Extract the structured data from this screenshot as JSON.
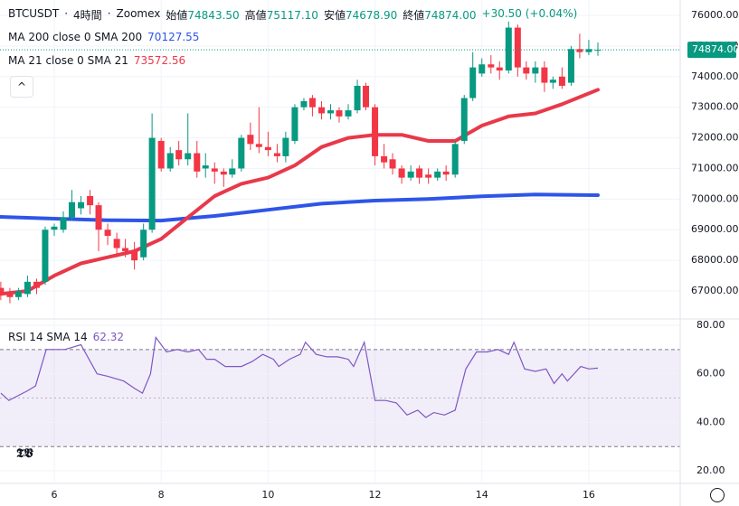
{
  "chart_data": {
    "type": "candlestick",
    "symbol": "BTCUSDT",
    "interval": "4時間",
    "exchange": "Zoomex",
    "ohlc_legend": [
      {
        "label": "始値",
        "value": "74843.50"
      },
      {
        "label": "高値",
        "value": "75117.10"
      },
      {
        "label": "安値",
        "value": "74678.90"
      },
      {
        "label": "終値",
        "value": "74874.00"
      }
    ],
    "change": "+30.50 (+0.04%)",
    "up_color": "#089981",
    "down_color": "#f23645",
    "x": [
      5,
      5.17,
      5.33,
      5.5,
      5.67,
      5.83,
      6,
      6.17,
      6.33,
      6.5,
      6.67,
      6.83,
      7,
      7.17,
      7.33,
      7.5,
      7.67,
      7.83,
      8,
      8.17,
      8.33,
      8.5,
      8.67,
      8.83,
      9,
      9.17,
      9.33,
      9.5,
      9.67,
      9.83,
      10,
      10.17,
      10.33,
      10.5,
      10.67,
      10.83,
      11,
      11.17,
      11.33,
      11.5,
      11.67,
      11.83,
      12,
      12.17,
      12.33,
      12.5,
      12.67,
      12.83,
      13,
      13.17,
      13.33,
      13.5,
      13.67,
      13.83,
      14,
      14.17,
      14.33,
      14.5,
      14.67,
      14.83,
      15,
      15.17,
      15.33,
      15.5,
      15.67,
      15.83,
      16,
      16.17
    ],
    "open": [
      67100,
      66950,
      66800,
      66900,
      67300,
      67300,
      69000,
      69000,
      69400,
      69700,
      70100,
      69800,
      69000,
      68700,
      68400,
      68300,
      68100,
      69000,
      71900,
      71000,
      71600,
      71300,
      71500,
      71000,
      71000,
      70900,
      70800,
      71000,
      72100,
      71800,
      71700,
      71500,
      71400,
      71900,
      73000,
      73300,
      73000,
      72800,
      72900,
      72700,
      72900,
      73700,
      73000,
      71400,
      71300,
      71000,
      70700,
      71000,
      70800,
      70700,
      70900,
      70800,
      71900,
      73300,
      74100,
      74400,
      74300,
      74200,
      75600,
      74300,
      74100,
      74300,
      73800,
      74000,
      73800,
      74900,
      74800,
      74843.5
    ],
    "high": [
      67300,
      67100,
      67100,
      67500,
      67400,
      69100,
      69200,
      69600,
      70300,
      70100,
      70300,
      69900,
      69200,
      68900,
      68700,
      68600,
      69200,
      72800,
      72000,
      71700,
      71900,
      72800,
      71900,
      71500,
      71200,
      71000,
      71300,
      72100,
      72500,
      73000,
      72200,
      71800,
      72200,
      73100,
      73300,
      73400,
      73200,
      73100,
      73000,
      73100,
      73900,
      73800,
      73100,
      71800,
      71500,
      71100,
      71100,
      71100,
      71000,
      71000,
      71100,
      71900,
      73400,
      74800,
      74600,
      74700,
      74500,
      75800,
      75700,
      74500,
      74500,
      74500,
      74000,
      74300,
      75000,
      75400,
      75200,
      75117.1
    ],
    "low": [
      66700,
      66600,
      66700,
      66800,
      66900,
      67200,
      68800,
      68900,
      69300,
      69500,
      69500,
      68300,
      68500,
      68100,
      68100,
      67700,
      68000,
      68900,
      70900,
      70900,
      71100,
      71100,
      70700,
      70700,
      70500,
      70400,
      70700,
      70900,
      71600,
      71500,
      71400,
      71200,
      71200,
      71800,
      72900,
      72700,
      72600,
      72600,
      72500,
      72600,
      72800,
      72900,
      71100,
      71000,
      70800,
      70500,
      70600,
      70500,
      70500,
      70600,
      70600,
      70700,
      71800,
      73200,
      74000,
      74100,
      73900,
      74100,
      74000,
      73900,
      73800,
      73500,
      73600,
      73600,
      73700,
      74600,
      74700,
      74678.9
    ],
    "close": [
      66900,
      66800,
      67000,
      67300,
      67100,
      69000,
      69100,
      69400,
      69900,
      69900,
      69800,
      69000,
      68800,
      68400,
      68300,
      68000,
      69000,
      72000,
      71000,
      71500,
      71300,
      71500,
      70900,
      71100,
      70900,
      70800,
      71000,
      72000,
      71800,
      71700,
      71600,
      71400,
      72000,
      73000,
      73200,
      73000,
      72800,
      72900,
      72700,
      72900,
      73700,
      73000,
      71400,
      71200,
      71000,
      70700,
      70900,
      70700,
      70700,
      70900,
      70800,
      71800,
      73300,
      74300,
      74400,
      74300,
      74200,
      75600,
      74300,
      74100,
      74300,
      73800,
      73900,
      73700,
      74900,
      74800,
      74900,
      74874
    ],
    "xlim": [
      4.985,
      17.71
    ],
    "xticks": [
      6,
      8,
      10,
      12,
      14,
      16
    ],
    "ylim": [
      66115,
      76502
    ],
    "yticks": [
      {
        "value": 67000,
        "label": "67000.00"
      },
      {
        "value": 68000,
        "label": "68000.00"
      },
      {
        "value": 69000,
        "label": "69000.00"
      },
      {
        "value": 70000,
        "label": "70000.00"
      },
      {
        "value": 71000,
        "label": "71000.00"
      },
      {
        "value": 72000,
        "label": "72000.00"
      },
      {
        "value": 73000,
        "label": "73000.00"
      },
      {
        "value": 74000,
        "label": "74000.00"
      },
      {
        "value": 75000,
        "label": "75000.00"
      },
      {
        "value": 76000,
        "label": "76000.00"
      }
    ],
    "last_price_label": "74874.00",
    "overlays": [
      {
        "name": "MA 200 close 0 SMA 200",
        "value_label": "70127.55",
        "color": "#2e55e8",
        "x": [
          4.985,
          6,
          7,
          8,
          9,
          10,
          11,
          12,
          13,
          14,
          15,
          16.17
        ],
        "values": [
          69420,
          69360,
          69310,
          69300,
          69450,
          69650,
          69850,
          69950,
          70000,
          70090,
          70150,
          70127.55
        ]
      },
      {
        "name": "MA 21 close 0 SMA 21",
        "value_label": "73572.56",
        "color": "#e8394a",
        "x": [
          4.985,
          5.5,
          6,
          6.5,
          7,
          7.5,
          8,
          8.5,
          9,
          9.5,
          10,
          10.5,
          11,
          11.5,
          12,
          12.5,
          13,
          13.5,
          14,
          14.5,
          15,
          15.5,
          16.17
        ],
        "values": [
          66900,
          67000,
          67500,
          67900,
          68100,
          68300,
          68700,
          69400,
          70100,
          70500,
          70700,
          71100,
          71700,
          72000,
          72100,
          72100,
          71900,
          71900,
          72400,
          72700,
          72800,
          73100,
          73572.56
        ]
      }
    ],
    "rsi": {
      "name": "RSI 14 SMA 14",
      "value_label": "62.32",
      "color": "#7e57c2",
      "x": [
        5,
        5.15,
        5.5,
        5.65,
        5.85,
        6.2,
        6.5,
        6.8,
        7,
        7.3,
        7.5,
        7.65,
        7.8,
        7.9,
        8.1,
        8.3,
        8.5,
        8.7,
        8.85,
        9,
        9.2,
        9.5,
        9.7,
        9.9,
        10.1,
        10.2,
        10.4,
        10.6,
        10.7,
        10.9,
        11.1,
        11.3,
        11.5,
        11.6,
        11.8,
        12,
        12.2,
        12.4,
        12.6,
        12.8,
        12.95,
        13.1,
        13.3,
        13.5,
        13.7,
        13.9,
        14.1,
        14.3,
        14.5,
        14.6,
        14.8,
        15,
        15.2,
        15.35,
        15.5,
        15.6,
        15.85,
        16,
        16.17
      ],
      "values": [
        52,
        49,
        53,
        55,
        70,
        70,
        72,
        60,
        59,
        57,
        54,
        52,
        60,
        75,
        69,
        70,
        69,
        70,
        66,
        66,
        63,
        63,
        65,
        68,
        66,
        63,
        66,
        68,
        73,
        68,
        67,
        67,
        66,
        63,
        73,
        49,
        49,
        48,
        43,
        45,
        42,
        44,
        43,
        45,
        62,
        69,
        69,
        70,
        68,
        73,
        62,
        61,
        62,
        56,
        60,
        57,
        63,
        62,
        62.32
      ],
      "ylim": [
        14.8,
        82.6
      ],
      "yticks": [
        {
          "value": 20,
          "label": "20.00"
        },
        {
          "value": 40,
          "label": "40.00"
        },
        {
          "value": 60,
          "label": "60.00"
        },
        {
          "value": 80,
          "label": "80.00"
        }
      ],
      "bands": [
        30,
        70
      ],
      "mid": 50
    }
  }
}
